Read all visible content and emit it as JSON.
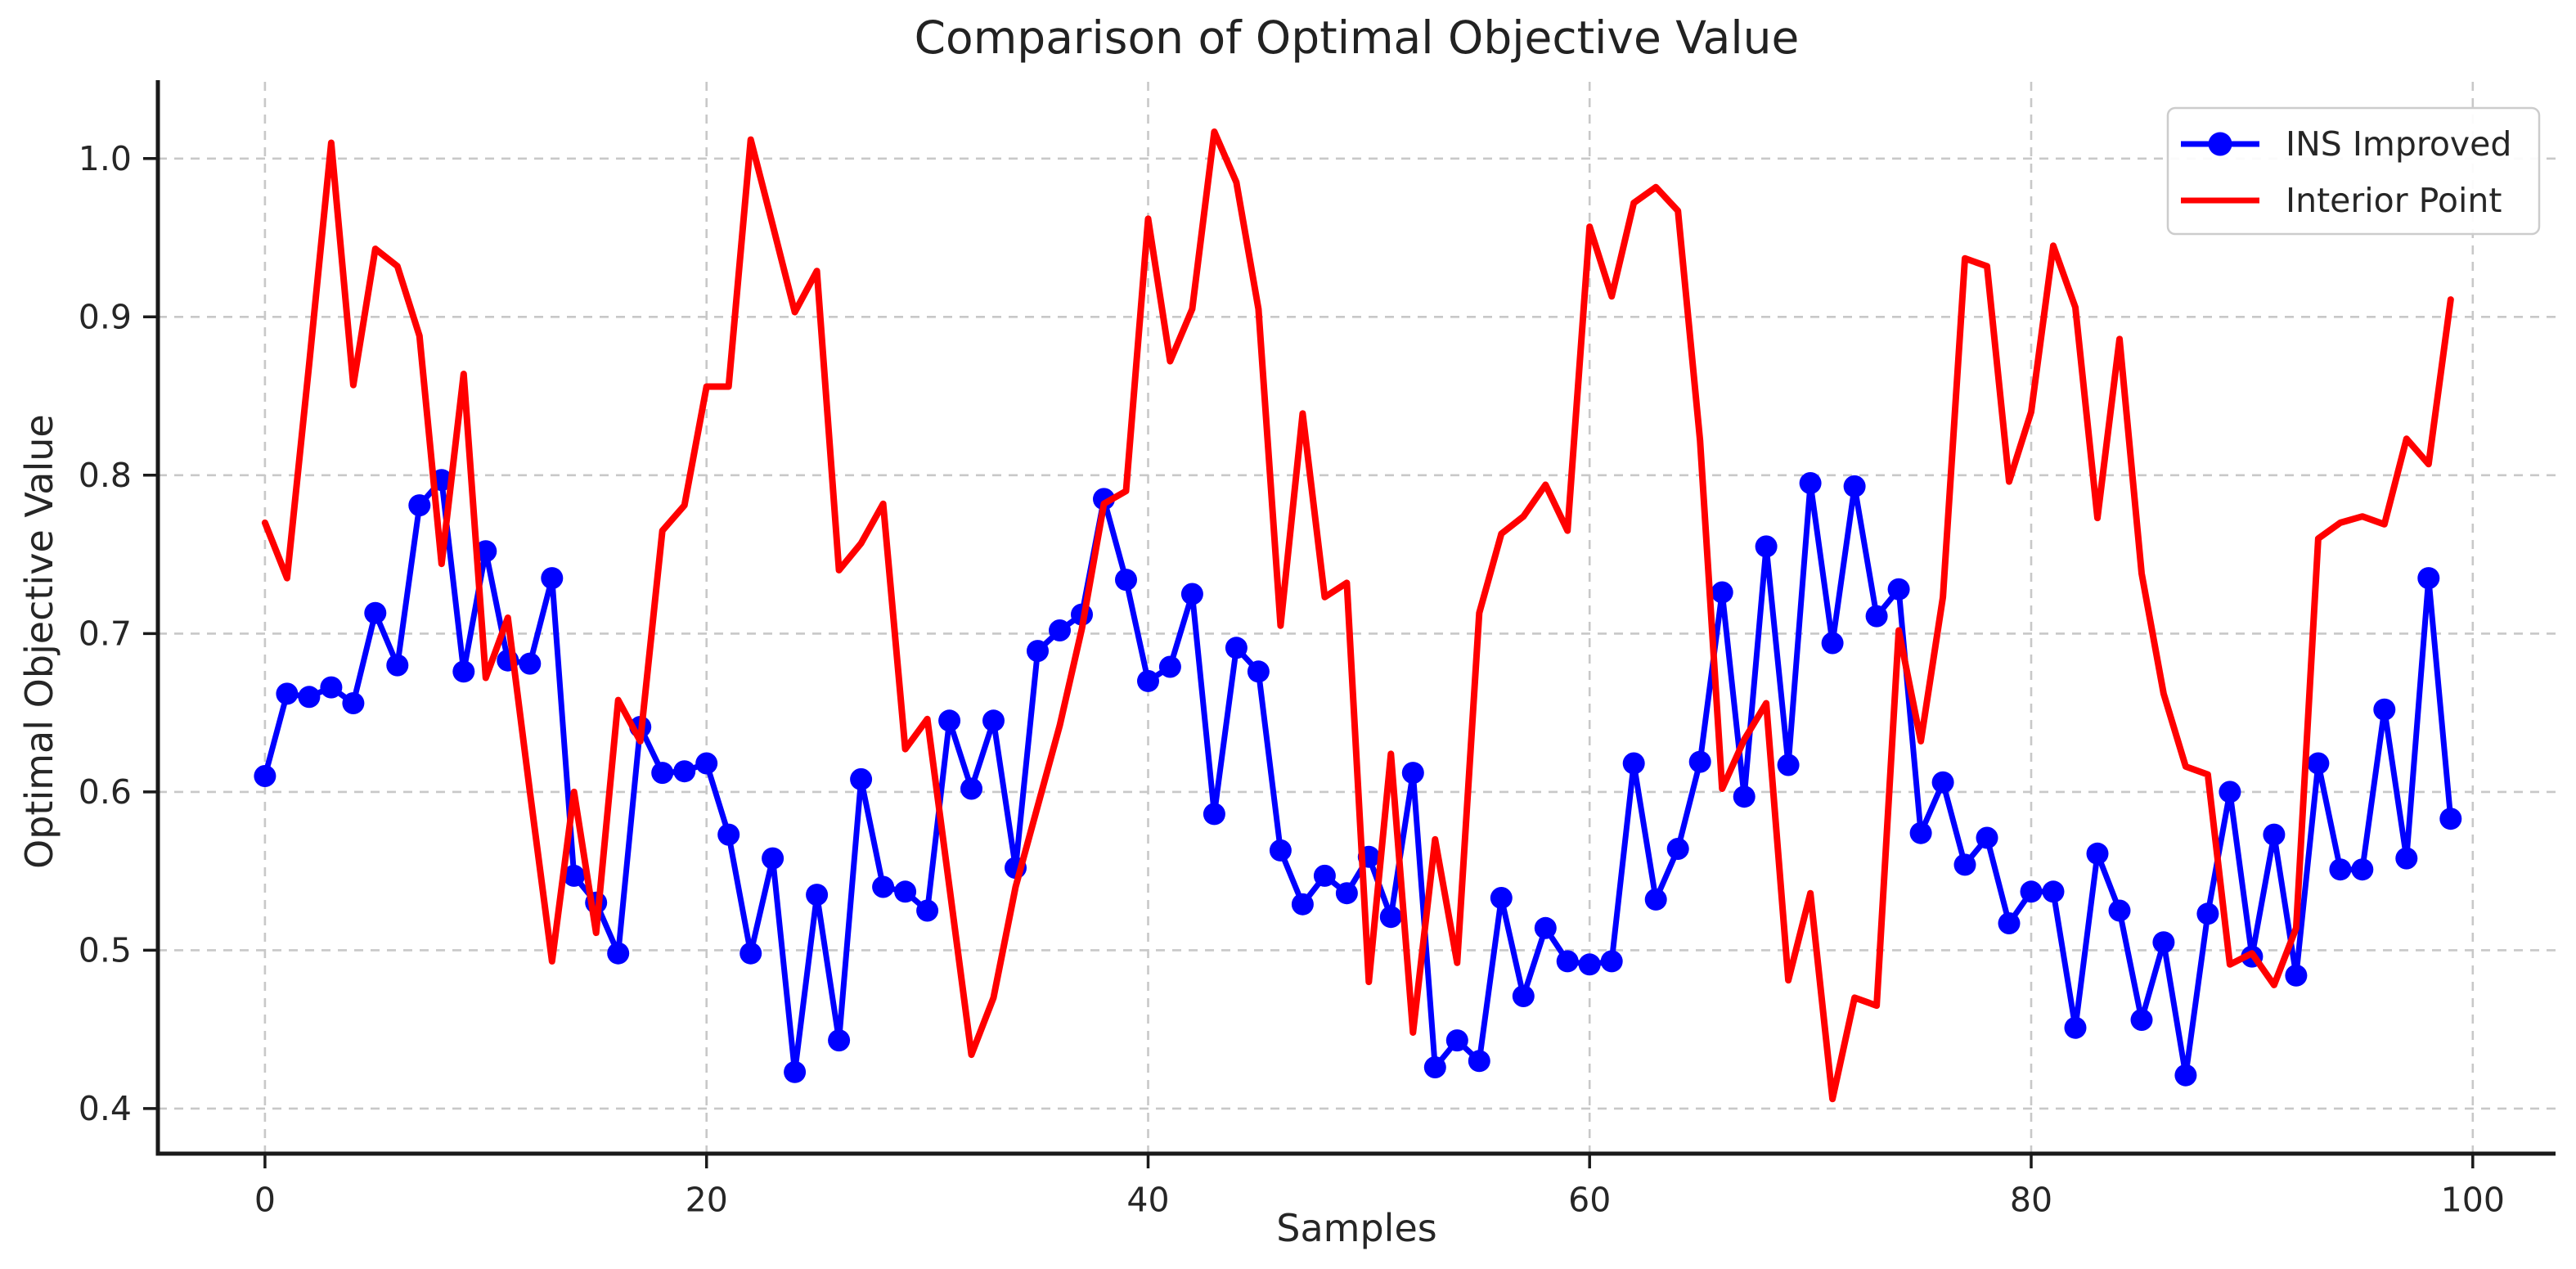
{
  "chart": {
    "title": "Comparison of Optimal Objective Value",
    "x_axis_label": "Samples",
    "y_axis_label": "Optimal Objective Value",
    "x_tick_labels": [
      "0",
      "20",
      "40",
      "60",
      "80",
      "100"
    ],
    "y_tick_labels": [
      "0.4",
      "0.5",
      "0.6",
      "0.7",
      "0.8",
      "0.9",
      "1.0"
    ],
    "colors": {
      "ins_improved": "#0000ff",
      "interior_point": "#ff0000",
      "grid": "#c8c8c8",
      "spine": "#1a1a1a",
      "text": "#262626",
      "legend_border": "#cccccc",
      "background": "#ffffff"
    }
  },
  "legend": {
    "position": "upper right",
    "entries": [
      {
        "label": "INS Improved",
        "color": "#0000ff",
        "marker": "circle"
      },
      {
        "label": "Interior Point",
        "color": "#ff0000",
        "marker": "none"
      }
    ]
  },
  "chart_data": {
    "type": "line",
    "title": "Comparison of Optimal Objective Value",
    "xlabel": "Samples",
    "ylabel": "Optimal Objective Value",
    "x_description": "sample index, integers 0 through 99",
    "x_range": [
      0,
      99
    ],
    "x_step": 1,
    "x_ticks": [
      0,
      20,
      40,
      60,
      80,
      100
    ],
    "y_ticks": [
      0.4,
      0.5,
      0.6,
      0.7,
      0.8,
      0.9,
      1.0
    ],
    "ylim_display": [
      0.37,
      1.05
    ],
    "grid": true,
    "legend_position": "upper right",
    "series": [
      {
        "name": "INS Improved",
        "color": "#0000ff",
        "marker": "circle",
        "values": [
          0.61,
          0.662,
          0.66,
          0.666,
          0.656,
          0.713,
          0.68,
          0.781,
          0.797,
          0.676,
          0.752,
          0.683,
          0.681,
          0.735,
          0.547,
          0.53,
          0.498,
          0.641,
          0.612,
          0.613,
          0.618,
          0.573,
          0.498,
          0.558,
          0.423,
          0.535,
          0.443,
          0.608,
          0.54,
          0.537,
          0.525,
          0.645,
          0.602,
          0.645,
          0.552,
          0.689,
          0.702,
          0.712,
          0.785,
          0.734,
          0.67,
          0.679,
          0.725,
          0.586,
          0.691,
          0.676,
          0.563,
          0.529,
          0.547,
          0.536,
          0.559,
          0.521,
          0.612,
          0.426,
          0.443,
          0.43,
          0.533,
          0.471,
          0.514,
          0.493,
          0.491,
          0.493,
          0.618,
          0.532,
          0.564,
          0.619,
          0.726,
          0.597,
          0.755,
          0.617,
          0.795,
          0.694,
          0.793,
          0.711,
          0.728,
          0.574,
          0.606,
          0.554,
          0.571,
          0.517,
          0.537,
          0.537,
          0.451,
          0.561,
          0.525,
          0.456,
          0.505,
          0.421,
          0.523,
          0.6,
          0.496,
          0.573,
          0.484,
          0.618,
          0.551,
          0.551,
          0.652,
          0.558,
          0.735,
          0.583
        ]
      },
      {
        "name": "Interior Point",
        "color": "#ff0000",
        "marker": "none",
        "values": [
          0.77,
          0.735,
          0.87,
          1.01,
          0.857,
          0.943,
          0.932,
          0.888,
          0.744,
          0.864,
          0.672,
          0.71,
          0.6,
          0.493,
          0.6,
          0.511,
          0.658,
          0.632,
          0.765,
          0.781,
          0.856,
          0.856,
          1.012,
          0.958,
          0.903,
          0.929,
          0.74,
          0.757,
          0.782,
          0.627,
          0.646,
          0.54,
          0.434,
          0.47,
          0.54,
          0.591,
          0.642,
          0.703,
          0.782,
          0.79,
          0.962,
          0.872,
          0.905,
          1.017,
          0.985,
          0.905,
          0.705,
          0.839,
          0.723,
          0.732,
          0.48,
          0.624,
          0.448,
          0.57,
          0.492,
          0.713,
          0.763,
          0.774,
          0.794,
          0.765,
          0.957,
          0.913,
          0.972,
          0.982,
          0.967,
          0.822,
          0.602,
          0.633,
          0.656,
          0.481,
          0.536,
          0.406,
          0.47,
          0.465,
          0.702,
          0.632,
          0.723,
          0.937,
          0.932,
          0.796,
          0.84,
          0.945,
          0.906,
          0.773,
          0.886,
          0.738,
          0.662,
          0.616,
          0.611,
          0.491,
          0.498,
          0.478,
          0.514,
          0.76,
          0.77,
          0.774,
          0.769,
          0.823,
          0.807,
          0.911
        ]
      }
    ]
  }
}
